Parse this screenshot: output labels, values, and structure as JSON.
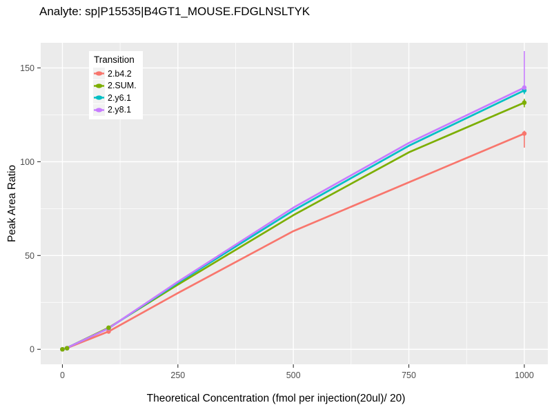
{
  "chart_data": {
    "type": "line",
    "title": "Analyte: sp|P15535|B4GT1_MOUSE.FDGLNSLTYK",
    "xlabel": "Theoretical Concentration (fmol per injection(20ul)/ 20)",
    "ylabel": "Peak Area Ratio",
    "legend_title": "Transition",
    "legend_position": "top-left-inside",
    "grid": "white-on-gray",
    "xlim": [
      -47,
      1051
    ],
    "ylim": [
      -8,
      163.4
    ],
    "x_ticks": [
      {
        "value": 0,
        "label": "0"
      },
      {
        "value": 250,
        "label": "250"
      },
      {
        "value": 500,
        "label": "500"
      },
      {
        "value": 750,
        "label": "750"
      },
      {
        "value": 1000,
        "label": "1000"
      }
    ],
    "y_ticks": [
      {
        "value": 0,
        "label": "0"
      },
      {
        "value": 50,
        "label": "50"
      },
      {
        "value": 100,
        "label": "100"
      },
      {
        "value": 150,
        "label": "150"
      }
    ],
    "x_minor": [
      125,
      375,
      625,
      875
    ],
    "y_minor": [
      25,
      75,
      125
    ],
    "line_x": [
      0,
      10,
      100,
      250,
      500,
      750,
      1000
    ],
    "series": [
      {
        "name": "2.b4.2",
        "color": "#F8766D",
        "line_y": [
          0,
          0.7,
          9.5,
          30,
          63,
          89,
          115
        ],
        "points": [
          [
            0,
            0
          ],
          [
            10,
            0.6
          ],
          [
            100,
            9.5
          ],
          [
            1000,
            115
          ]
        ],
        "error_bars": [
          {
            "x": 1000,
            "ymin": 107.5,
            "ymax": 116.5
          }
        ]
      },
      {
        "name": "2.SUM.",
        "color": "#7CAE00",
        "line_y": [
          0,
          0.8,
          11.5,
          34.5,
          71.5,
          105,
          131.5
        ],
        "points": [
          [
            0,
            0
          ],
          [
            10,
            0.6
          ],
          [
            100,
            11.5
          ],
          [
            1000,
            131.5
          ]
        ],
        "error_bars": [
          {
            "x": 1000,
            "ymin": 129,
            "ymax": 133.5
          }
        ]
      },
      {
        "name": "2.y6.1",
        "color": "#00BFC4",
        "line_y": [
          0,
          0.8,
          11.2,
          35.5,
          74,
          108.5,
          138
        ],
        "points": [
          [
            0,
            0
          ],
          [
            10,
            0.6
          ],
          [
            100,
            11.2
          ],
          [
            1000,
            138
          ]
        ],
        "error_bars": [
          {
            "x": 1000,
            "ymin": 136,
            "ymax": 139.5
          }
        ]
      },
      {
        "name": "2.y8.1",
        "color": "#C77CFF",
        "line_y": [
          0,
          0.8,
          11.2,
          36,
          75.5,
          110,
          139.5
        ],
        "points": [
          [
            0,
            0
          ],
          [
            10,
            0.6
          ],
          [
            100,
            11.2
          ],
          [
            1000,
            139.5
          ]
        ],
        "error_bars": [
          {
            "x": 1000,
            "ymin": 138,
            "ymax": 159
          }
        ]
      }
    ],
    "marker_draw_order": [
      "2.b4.2",
      "2.y6.1",
      "2.y8.1",
      "2.SUM."
    ]
  },
  "colors": {
    "panel_background": "#EBEBEB",
    "grid": "#FFFFFF",
    "tick_mark": "#333333",
    "tick_label": "#4D4D4D",
    "legend_key_background": "#F2F2F2"
  }
}
